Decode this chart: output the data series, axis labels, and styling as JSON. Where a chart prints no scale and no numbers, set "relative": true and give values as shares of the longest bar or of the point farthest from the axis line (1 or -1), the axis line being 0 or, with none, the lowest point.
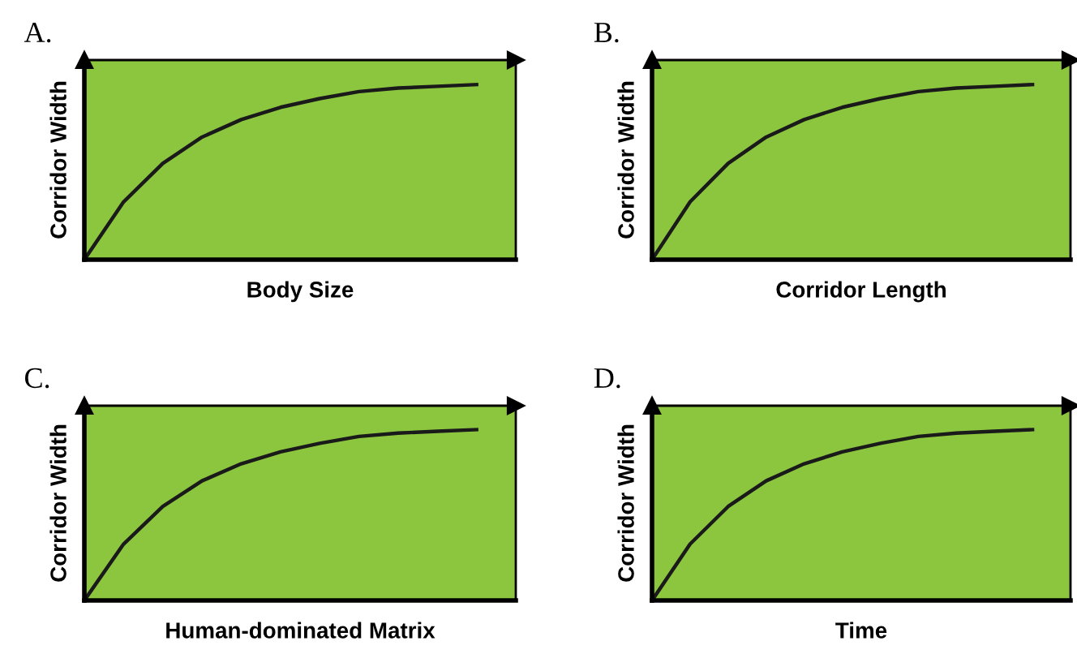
{
  "chart_data": [
    {
      "type": "line",
      "title": "A.",
      "xlabel": "Body Size",
      "ylabel": "Corridor Width",
      "relative": true,
      "categories": [
        null,
        null,
        null,
        null,
        null,
        null,
        null,
        null,
        null,
        null,
        null
      ],
      "series": [
        {
          "color": "#1a1a1a",
          "values": [
            0,
            0.33,
            0.55,
            0.7,
            0.8,
            0.87,
            0.92,
            0.96,
            0.98,
            0.99,
            1.0
          ]
        }
      ],
      "marker": "none",
      "line_style": "solid",
      "grid": false,
      "legend": false
    },
    {
      "type": "line",
      "title": "B.",
      "xlabel": "Corridor Length",
      "ylabel": "Corridor Width",
      "relative": true,
      "categories": [
        null,
        null,
        null,
        null,
        null,
        null,
        null,
        null,
        null,
        null,
        null
      ],
      "series": [
        {
          "color": "#1a1a1a",
          "values": [
            0,
            0.33,
            0.55,
            0.7,
            0.8,
            0.87,
            0.92,
            0.96,
            0.98,
            0.99,
            1.0
          ]
        }
      ],
      "marker": "none",
      "line_style": "solid",
      "grid": false,
      "legend": false
    },
    {
      "type": "line",
      "title": "C.",
      "xlabel": "Human-dominated Matrix",
      "ylabel": "Corridor Width",
      "relative": true,
      "categories": [
        null,
        null,
        null,
        null,
        null,
        null,
        null,
        null,
        null,
        null,
        null
      ],
      "series": [
        {
          "color": "#1a1a1a",
          "values": [
            0,
            0.33,
            0.55,
            0.7,
            0.8,
            0.87,
            0.92,
            0.96,
            0.98,
            0.99,
            1.0
          ]
        }
      ],
      "marker": "none",
      "line_style": "solid",
      "grid": false,
      "legend": false
    },
    {
      "type": "line",
      "title": "D.",
      "xlabel": "Time",
      "ylabel": "Corridor Width",
      "relative": true,
      "categories": [
        null,
        null,
        null,
        null,
        null,
        null,
        null,
        null,
        null,
        null,
        null
      ],
      "series": [
        {
          "color": "#1a1a1a",
          "values": [
            0,
            0.33,
            0.55,
            0.7,
            0.8,
            0.87,
            0.92,
            0.96,
            0.98,
            0.99,
            1.0
          ]
        }
      ],
      "marker": "none",
      "line_style": "solid",
      "grid": false,
      "legend": false
    }
  ]
}
